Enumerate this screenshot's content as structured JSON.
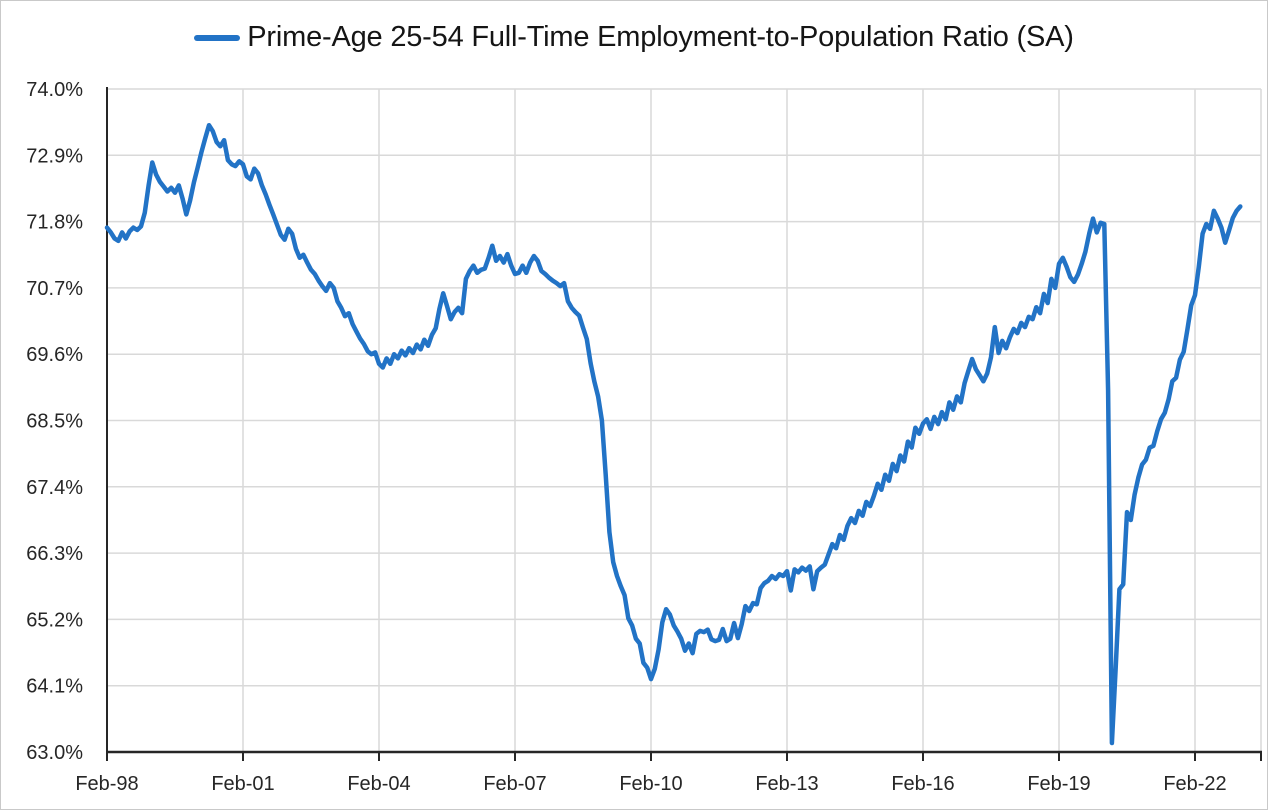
{
  "legend": {
    "label": "Prime-Age 25-54 Full-Time Employment-to-Population Ratio (SA)"
  },
  "colors": {
    "series_line": "#2273C6",
    "gridline": "#D9D9D9",
    "axis": "#262626",
    "label_text": "#262626"
  },
  "y_axis": {
    "tick_labels": [
      "74.0%",
      "72.9%",
      "71.8%",
      "70.7%",
      "69.6%",
      "68.5%",
      "67.4%",
      "66.3%",
      "65.2%",
      "64.1%",
      "63.0%"
    ],
    "max": 74.0,
    "min": 63.0,
    "step": 1.1
  },
  "x_axis": {
    "tick_labels": [
      "Feb-98",
      "Feb-01",
      "Feb-04",
      "Feb-07",
      "Feb-10",
      "Feb-13",
      "Feb-16",
      "Feb-19",
      "Feb-22"
    ],
    "tick_interval_months": 36
  },
  "chart_data": {
    "type": "line",
    "title": "Prime-Age 25-54 Full-Time Employment-to-Population Ratio (SA)",
    "x_start": "Feb-1998",
    "x_end": "Feb-2023",
    "x_frequency": "monthly",
    "ylim": [
      63.0,
      74.0
    ],
    "grid": true,
    "legend_position": "top-center",
    "unit": "percent",
    "series": [
      {
        "name": "Prime-Age 25-54 Full-Time Employment-to-Population Ratio (SA)",
        "values": [
          71.7,
          71.62,
          71.52,
          71.48,
          71.62,
          71.52,
          71.64,
          71.7,
          71.66,
          71.72,
          71.95,
          72.4,
          72.78,
          72.58,
          72.46,
          72.38,
          72.3,
          72.36,
          72.28,
          72.4,
          72.18,
          71.92,
          72.15,
          72.45,
          72.7,
          72.95,
          73.18,
          73.4,
          73.3,
          73.12,
          73.05,
          73.15,
          72.82,
          72.75,
          72.72,
          72.8,
          72.75,
          72.55,
          72.5,
          72.68,
          72.6,
          72.4,
          72.25,
          72.08,
          71.92,
          71.75,
          71.58,
          71.5,
          71.68,
          71.6,
          71.35,
          71.2,
          71.25,
          71.12,
          71.0,
          70.93,
          70.82,
          70.73,
          70.65,
          70.78,
          70.7,
          70.48,
          70.37,
          70.23,
          70.28,
          70.1,
          69.98,
          69.86,
          69.77,
          69.65,
          69.6,
          69.63,
          69.44,
          69.38,
          69.53,
          69.44,
          69.6,
          69.53,
          69.66,
          69.58,
          69.7,
          69.62,
          69.76,
          69.68,
          69.84,
          69.74,
          69.92,
          70.03,
          70.35,
          70.61,
          70.4,
          70.18,
          70.3,
          70.37,
          70.28,
          70.85,
          70.98,
          71.07,
          70.95,
          71.0,
          71.02,
          71.2,
          71.4,
          71.15,
          71.23,
          71.12,
          71.26,
          71.07,
          70.93,
          70.95,
          71.07,
          70.95,
          71.12,
          71.23,
          71.15,
          70.98,
          70.93,
          70.87,
          70.82,
          70.78,
          70.73,
          70.78,
          70.48,
          70.37,
          70.3,
          70.24,
          70.04,
          69.85,
          69.45,
          69.15,
          68.9,
          68.5,
          67.6,
          66.65,
          66.15,
          65.92,
          65.75,
          65.6,
          65.22,
          65.1,
          64.88,
          64.8,
          64.48,
          64.4,
          64.21,
          64.38,
          64.7,
          65.15,
          65.37,
          65.28,
          65.1,
          65.0,
          64.88,
          64.68,
          64.8,
          64.64,
          64.96,
          65.01,
          64.99,
          65.03,
          64.87,
          64.84,
          64.86,
          65.04,
          64.84,
          64.88,
          65.14,
          64.89,
          65.12,
          65.42,
          65.34,
          65.47,
          65.45,
          65.72,
          65.8,
          65.84,
          65.92,
          65.87,
          65.95,
          65.92,
          66.0,
          65.68,
          66.03,
          65.98,
          66.06,
          66.01,
          66.08,
          65.7,
          66.0,
          66.06,
          66.11,
          66.28,
          66.45,
          66.38,
          66.6,
          66.52,
          66.75,
          66.88,
          66.8,
          67.0,
          66.92,
          67.15,
          67.08,
          67.25,
          67.45,
          67.35,
          67.6,
          67.5,
          67.78,
          67.66,
          67.92,
          67.82,
          68.15,
          68.05,
          68.38,
          68.28,
          68.45,
          68.52,
          68.36,
          68.56,
          68.44,
          68.64,
          68.52,
          68.8,
          68.68,
          68.9,
          68.8,
          69.12,
          69.32,
          69.52,
          69.35,
          69.25,
          69.15,
          69.28,
          69.55,
          70.05,
          69.62,
          69.82,
          69.7,
          69.88,
          70.02,
          69.95,
          70.12,
          70.05,
          70.22,
          70.18,
          70.38,
          70.28,
          70.6,
          70.45,
          70.85,
          70.7,
          71.1,
          71.2,
          71.05,
          70.88,
          70.8,
          70.92,
          71.1,
          71.3,
          71.6,
          71.85,
          71.62,
          71.78,
          71.76,
          69.0,
          63.15,
          64.4,
          65.7,
          65.78,
          66.98,
          66.85,
          67.27,
          67.55,
          67.77,
          67.85,
          68.05,
          68.08,
          68.32,
          68.52,
          68.63,
          68.85,
          69.15,
          69.21,
          69.51,
          69.64,
          70.01,
          70.41,
          70.58,
          71.05,
          71.6,
          71.76,
          71.68,
          71.98,
          71.85,
          71.7,
          71.45,
          71.65,
          71.86,
          71.98,
          72.05
        ]
      }
    ]
  }
}
